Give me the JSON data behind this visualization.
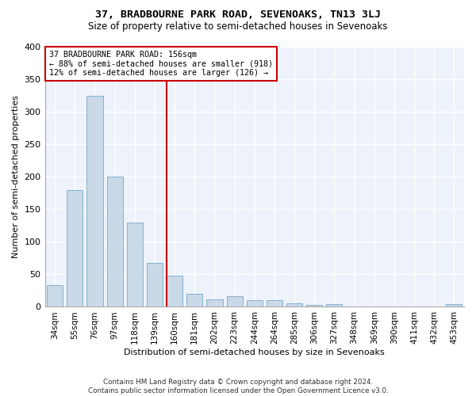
{
  "title": "37, BRADBOURNE PARK ROAD, SEVENOAKS, TN13 3LJ",
  "subtitle": "Size of property relative to semi-detached houses in Sevenoaks",
  "xlabel": "Distribution of semi-detached houses by size in Sevenoaks",
  "ylabel": "Number of semi-detached properties",
  "categories": [
    "34sqm",
    "55sqm",
    "76sqm",
    "97sqm",
    "118sqm",
    "139sqm",
    "160sqm",
    "181sqm",
    "202sqm",
    "223sqm",
    "244sqm",
    "264sqm",
    "285sqm",
    "306sqm",
    "327sqm",
    "348sqm",
    "369sqm",
    "390sqm",
    "411sqm",
    "432sqm",
    "453sqm"
  ],
  "values": [
    33,
    180,
    325,
    200,
    130,
    68,
    48,
    20,
    12,
    16,
    10,
    10,
    5,
    3,
    4,
    0,
    1,
    1,
    0,
    0,
    4
  ],
  "bar_color": "#c9d9e8",
  "bar_edge_color": "#7aa8c8",
  "vline_pos": 5.6,
  "vline_color": "#cc0000",
  "annotation_line1": "37 BRADBOURNE PARK ROAD: 156sqm",
  "annotation_line2": "← 88% of semi-detached houses are smaller (918)",
  "annotation_line3": "12% of semi-detached houses are larger (126) →",
  "annotation_box_color": "#cc0000",
  "background_color": "#eef2fb",
  "grid_color": "#ffffff",
  "footer_line1": "Contains HM Land Registry data © Crown copyright and database right 2024.",
  "footer_line2": "Contains public sector information licensed under the Open Government Licence v3.0.",
  "ylim": [
    0,
    400
  ],
  "yticks": [
    0,
    50,
    100,
    150,
    200,
    250,
    300,
    350,
    400
  ]
}
